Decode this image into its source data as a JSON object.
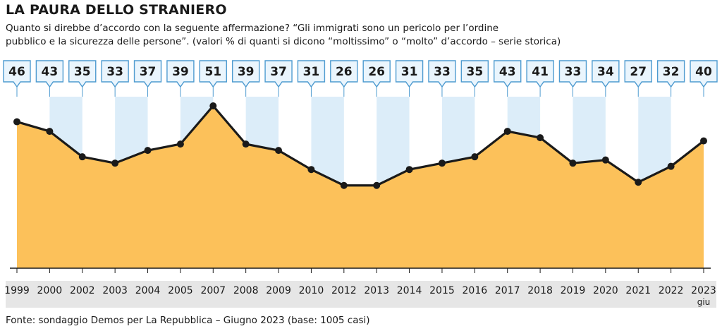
{
  "header": {
    "title": "LA PAURA DELLO STRANIERO",
    "subtitle_line1": "Quanto si direbbe d’accordo con la seguente affermazione? “Gli immigrati sono un pericolo per l’ordine",
    "subtitle_line2": "pubblico e la sicurezza delle persone”. (valori % di quanti si dicono “moltissimo” o “molto” d’accordo – serie storica)"
  },
  "footer": {
    "source": "Fonte: sondaggio Demos per La Repubblica – Giugno 2023 (base: 1005 casi)"
  },
  "chart_data": {
    "type": "area",
    "categories": [
      "1999",
      "2000",
      "2002",
      "2003",
      "2004",
      "2005",
      "2007",
      "2008",
      "2009",
      "2010",
      "2012",
      "2013",
      "2014",
      "2015",
      "2016",
      "2017",
      "2018",
      "2019",
      "2020",
      "2021",
      "2022",
      "2023"
    ],
    "category_note": {
      "index": 21,
      "text": "giu"
    },
    "values": [
      46,
      43,
      35,
      33,
      37,
      39,
      51,
      39,
      37,
      31,
      26,
      26,
      31,
      33,
      35,
      43,
      41,
      33,
      34,
      27,
      32,
      40
    ],
    "data_labels_shown": true,
    "colors": {
      "fill": "#fcc15a",
      "line": "#1a1a1a",
      "band": "#dcedf9",
      "label_border": "#4e9bd0",
      "label_bg": "#eaf5fd",
      "axis_strip": "#e6e6e6"
    }
  }
}
